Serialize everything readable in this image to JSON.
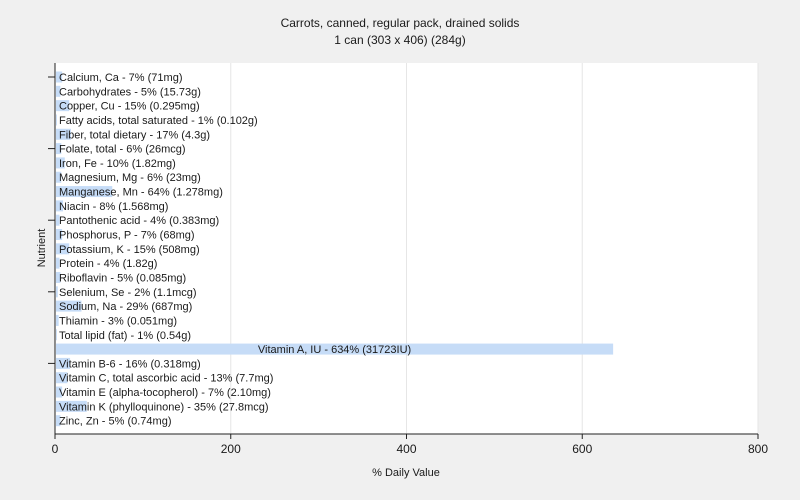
{
  "chart_data": {
    "type": "bar",
    "orientation": "horizontal",
    "title": "Carrots, canned, regular pack, drained solids",
    "subtitle": "1 can (303 x 406) (284g)",
    "xlabel": "% Daily Value",
    "ylabel": "Nutrient",
    "xlim": [
      0,
      800
    ],
    "xticks": [
      0,
      200,
      400,
      600,
      800
    ],
    "grid": true,
    "bar_color": "#c6dcf7",
    "categories": [
      "Calcium, Ca",
      "Carbohydrates",
      "Copper, Cu",
      "Fatty acids, total saturated",
      "Fiber, total dietary",
      "Folate, total",
      "Iron, Fe",
      "Magnesium, Mg",
      "Manganese, Mn",
      "Niacin",
      "Pantothenic acid",
      "Phosphorus, P",
      "Potassium, K",
      "Protein",
      "Riboflavin",
      "Selenium, Se",
      "Sodium, Na",
      "Thiamin",
      "Total lipid (fat)",
      "Vitamin A, IU",
      "Vitamin B-6",
      "Vitamin C, total ascorbic acid",
      "Vitamin E (alpha-tocopherol)",
      "Vitamin K (phylloquinone)",
      "Zinc, Zn"
    ],
    "values": [
      7,
      5,
      15,
      1,
      17,
      6,
      10,
      6,
      64,
      8,
      4,
      7,
      15,
      4,
      5,
      2,
      29,
      3,
      1,
      634,
      16,
      13,
      7,
      35,
      5
    ],
    "labels": [
      "Calcium, Ca - 7% (71mg)",
      "Carbohydrates - 5% (15.73g)",
      "Copper, Cu - 15% (0.295mg)",
      "Fatty acids, total saturated - 1% (0.102g)",
      "Fiber, total dietary - 17% (4.3g)",
      "Folate, total - 6% (26mcg)",
      "Iron, Fe - 10% (1.82mg)",
      "Magnesium, Mg - 6% (23mg)",
      "Manganese, Mn - 64% (1.278mg)",
      "Niacin - 8% (1.568mg)",
      "Pantothenic acid - 4% (0.383mg)",
      "Phosphorus, P - 7% (68mg)",
      "Potassium, K - 15% (508mg)",
      "Protein - 4% (1.82g)",
      "Riboflavin - 5% (0.085mg)",
      "Selenium, Se - 2% (1.1mcg)",
      "Sodium, Na - 29% (687mg)",
      "Thiamin - 3% (0.051mg)",
      "Total lipid (fat) - 1% (0.54g)",
      "Vitamin A, IU - 634% (31723IU)",
      "Vitamin B-6 - 16% (0.318mg)",
      "Vitamin C, total ascorbic acid - 13% (7.7mg)",
      "Vitamin E (alpha-tocopherol) - 7% (2.10mg)",
      "Vitamin K (phylloquinone) - 35% (27.8mcg)",
      "Zinc, Zn - 5% (0.74mg)"
    ]
  }
}
